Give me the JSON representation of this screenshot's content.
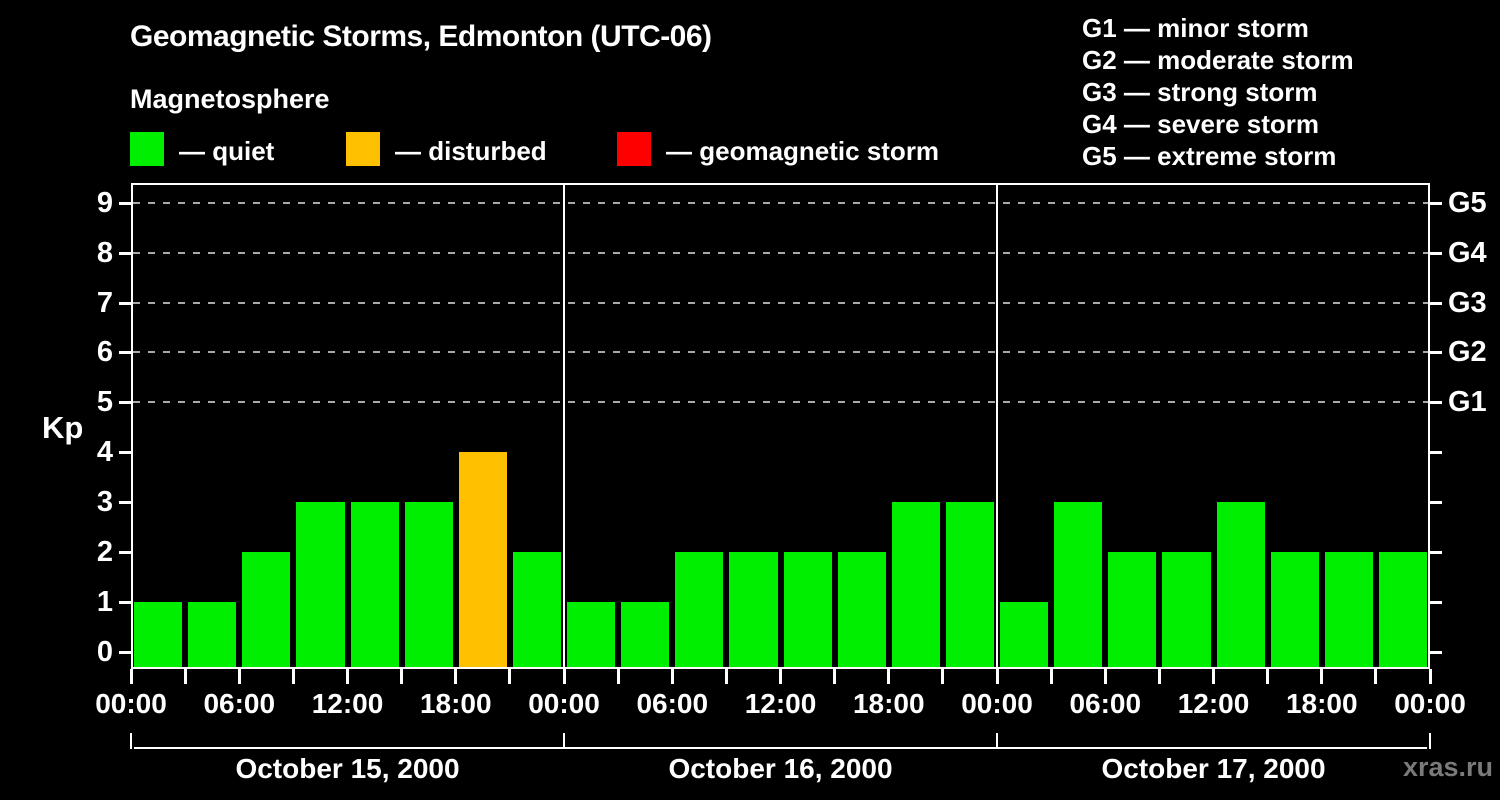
{
  "header": {
    "title": "Geomagnetic Storms, Edmonton (UTC-06)",
    "subtitle": "Magnetosphere"
  },
  "legend": {
    "items": [
      {
        "name": "quiet",
        "label": "— quiet",
        "color": "#00ee00"
      },
      {
        "name": "disturbed",
        "label": "— disturbed",
        "color": "#ffc000"
      },
      {
        "name": "geomagnetic-storm",
        "label": "— geomagnetic storm",
        "color": "#ff0000"
      }
    ]
  },
  "g_scale_legend": {
    "items": [
      "G1 — minor storm",
      "G2 — moderate storm",
      "G3 — strong storm",
      "G4 — severe storm",
      "G5 — extreme storm"
    ]
  },
  "watermark": "xras.ru",
  "chart_data": {
    "type": "bar",
    "title": "Geomagnetic Storms, Edmonton (UTC-06)",
    "subtitle": "Magnetosphere",
    "ylabel": "Kp",
    "ylim": [
      -0.35,
      9.4
    ],
    "yticks": [
      0,
      1,
      2,
      3,
      4,
      5,
      6,
      7,
      8,
      9
    ],
    "grid_levels": [
      5,
      6,
      7,
      8,
      9
    ],
    "grid_style": "dashed",
    "right_axis_labels": [
      {
        "value": 5,
        "label": "G1"
      },
      {
        "value": 6,
        "label": "G2"
      },
      {
        "value": 7,
        "label": "G3"
      },
      {
        "value": 8,
        "label": "G4"
      },
      {
        "value": 9,
        "label": "G5"
      }
    ],
    "hours_per_bar": 3,
    "x_tick_every_hours": 3,
    "x_label_every_hours": 6,
    "x_time_labels": [
      "00:00",
      "06:00",
      "12:00",
      "18:00",
      "00:00",
      "06:00",
      "12:00",
      "18:00",
      "00:00",
      "06:00",
      "12:00",
      "18:00",
      "00:00"
    ],
    "days": [
      {
        "date": "October 15, 2000",
        "kp": [
          1,
          1,
          2,
          3,
          3,
          3,
          4,
          2
        ]
      },
      {
        "date": "October 16, 2000",
        "kp": [
          1,
          1,
          2,
          2,
          2,
          2,
          3,
          3
        ]
      },
      {
        "date": "October 17, 2000",
        "kp": [
          1,
          3,
          2,
          2,
          3,
          2,
          2,
          2
        ]
      }
    ],
    "color_rule": {
      "quiet_max_kp": 3,
      "disturbed_max_kp": 4
    },
    "colors": {
      "quiet": "#00ee00",
      "disturbed": "#ffc000",
      "storm": "#ff0000",
      "background": "#000000",
      "axis": "#ffffff",
      "grid": "#a9a9a9"
    }
  }
}
